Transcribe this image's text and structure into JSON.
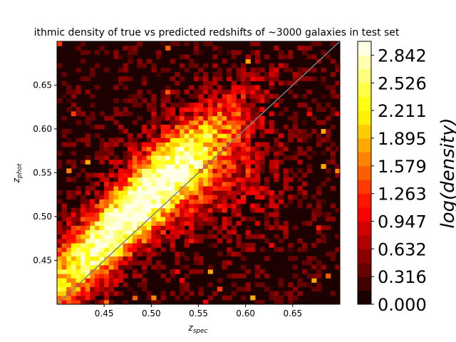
{
  "chart_data": {
    "type": "heatmap",
    "title": "ithmic density of true vs predicted redshifts of ~3000 galaxies in test set",
    "xlabel": "z_spec",
    "ylabel": "z_phot",
    "xlim": [
      0.4,
      0.7
    ],
    "ylim": [
      0.4,
      0.7
    ],
    "x_ticks": [
      "0.45",
      "0.50",
      "0.55",
      "0.60",
      "0.65"
    ],
    "y_ticks": [
      "0.45",
      "0.50",
      "0.55",
      "0.60",
      "0.65"
    ],
    "colorbar": {
      "label": "log(density)",
      "range": [
        0.0,
        3.0
      ],
      "ticks": [
        "0.000",
        "0.316",
        "0.632",
        "0.947",
        "1.263",
        "1.579",
        "1.895",
        "2.211",
        "2.526",
        "2.842"
      ],
      "colormap": "hot",
      "levels": 19
    },
    "density_model": {
      "description": "log-density of galaxies concentrated along the line z_phot ≈ z_spec, peak near (0.47, 0.49)",
      "peak": {
        "x": 0.47,
        "y": 0.49,
        "value": 3.0
      },
      "diagonal_reference": [
        [
          0.4,
          0.4
        ],
        [
          0.7,
          0.7
        ]
      ]
    },
    "diagonal_color": "#808080"
  }
}
